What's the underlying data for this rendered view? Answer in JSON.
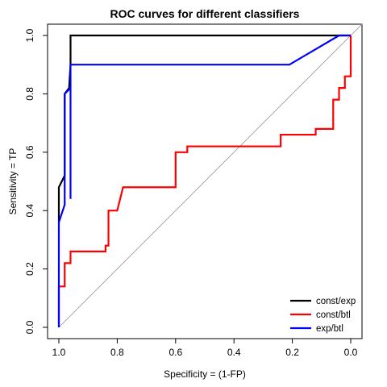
{
  "chart_data": {
    "type": "line",
    "title": "ROC curves for different classifiers",
    "xlabel": "Specificity = (1-FP)",
    "ylabel": "Sensitivity = TP",
    "xlim": [
      1.0,
      0.0
    ],
    "ylim": [
      0.0,
      1.0
    ],
    "x_reversed": true,
    "x_ticks": [
      "1.0",
      "0.8",
      "0.6",
      "0.4",
      "0.2",
      "0.0"
    ],
    "y_ticks": [
      "0.0",
      "0.2",
      "0.4",
      "0.6",
      "0.8",
      "1.0"
    ],
    "grid": false,
    "legend_position": "bottom-right",
    "reference_line": {
      "from": [
        1.0,
        0.0
      ],
      "to": [
        0.0,
        1.0
      ],
      "color": "#aaaaaa"
    },
    "series": [
      {
        "name": "const/exp",
        "color": "#000000",
        "points": [
          [
            1.0,
            0.36
          ],
          [
            1.0,
            0.48
          ],
          [
            0.98,
            0.52
          ],
          [
            0.98,
            0.55
          ],
          [
            0.98,
            0.8
          ],
          [
            0.965,
            0.82
          ],
          [
            0.96,
            0.9
          ],
          [
            0.96,
            1.0
          ],
          [
            0.0,
            1.0
          ]
        ]
      },
      {
        "name": "const/btl",
        "color": "#ff0000",
        "points": [
          [
            1.0,
            0.0
          ],
          [
            1.0,
            0.14
          ],
          [
            0.98,
            0.14
          ],
          [
            0.98,
            0.22
          ],
          [
            0.96,
            0.22
          ],
          [
            0.96,
            0.26
          ],
          [
            0.84,
            0.26
          ],
          [
            0.84,
            0.28
          ],
          [
            0.83,
            0.28
          ],
          [
            0.83,
            0.4
          ],
          [
            0.8,
            0.4
          ],
          [
            0.78,
            0.48
          ],
          [
            0.6,
            0.48
          ],
          [
            0.6,
            0.6
          ],
          [
            0.56,
            0.6
          ],
          [
            0.56,
            0.62
          ],
          [
            0.24,
            0.62
          ],
          [
            0.24,
            0.66
          ],
          [
            0.12,
            0.66
          ],
          [
            0.12,
            0.68
          ],
          [
            0.06,
            0.68
          ],
          [
            0.06,
            0.78
          ],
          [
            0.04,
            0.78
          ],
          [
            0.04,
            0.82
          ],
          [
            0.02,
            0.82
          ],
          [
            0.02,
            0.86
          ],
          [
            0.0,
            0.86
          ],
          [
            0.0,
            1.0
          ]
        ]
      },
      {
        "name": "exp/btl",
        "color": "#0000ff",
        "points": [
          [
            1.0,
            0.0
          ],
          [
            1.0,
            0.36
          ],
          [
            0.98,
            0.42
          ],
          [
            0.98,
            0.8
          ],
          [
            0.96,
            0.82
          ],
          [
            0.96,
            0.44
          ],
          [
            0.96,
            0.9
          ],
          [
            0.21,
            0.9
          ],
          [
            0.04,
            1.0
          ],
          [
            0.0,
            1.0
          ]
        ]
      }
    ]
  }
}
